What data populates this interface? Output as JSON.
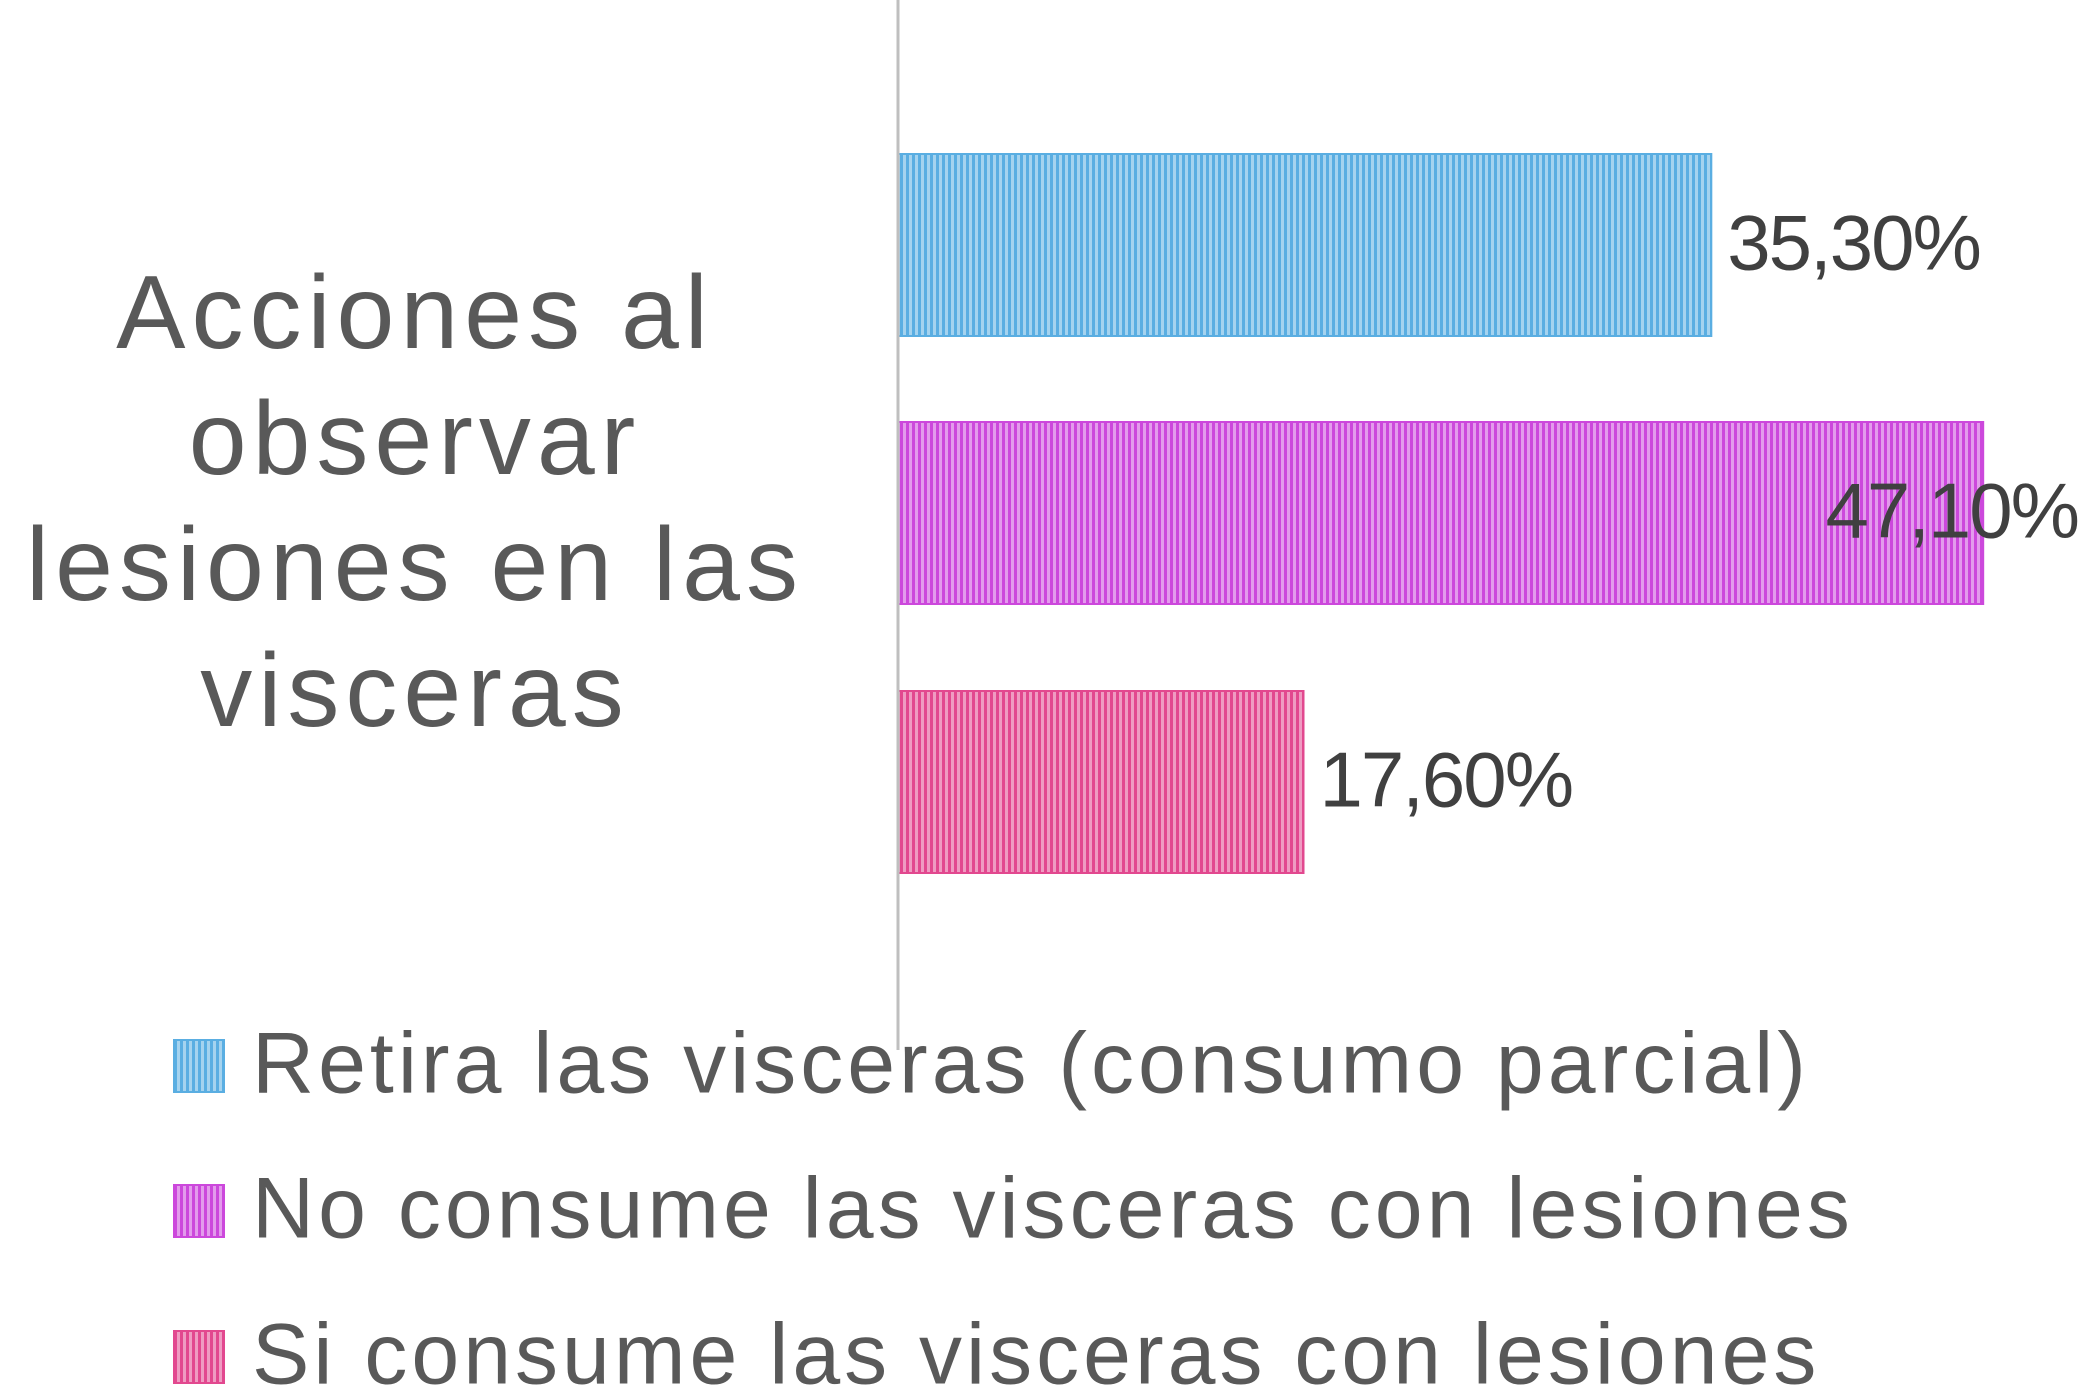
{
  "chart_data": {
    "type": "bar",
    "orientation": "horizontal",
    "categories": [
      "Acciones al observar lesiones en las visceras"
    ],
    "series": [
      {
        "name": "Retira las visceras (consumo parcial)",
        "color": "#5aaee2",
        "values": [
          35.3
        ],
        "value_labels": [
          "35,30%"
        ]
      },
      {
        "name": "No consume las visceras con lesiones",
        "color": "#cc48dc",
        "values": [
          47.1
        ],
        "value_labels": [
          "47,10%"
        ]
      },
      {
        "name": "Si consume las visceras con lesiones",
        "color": "#e2488f",
        "values": [
          17.6
        ],
        "value_labels": [
          "17,60%"
        ]
      }
    ],
    "xlim": [
      0,
      50
    ],
    "legend": "bottom"
  }
}
